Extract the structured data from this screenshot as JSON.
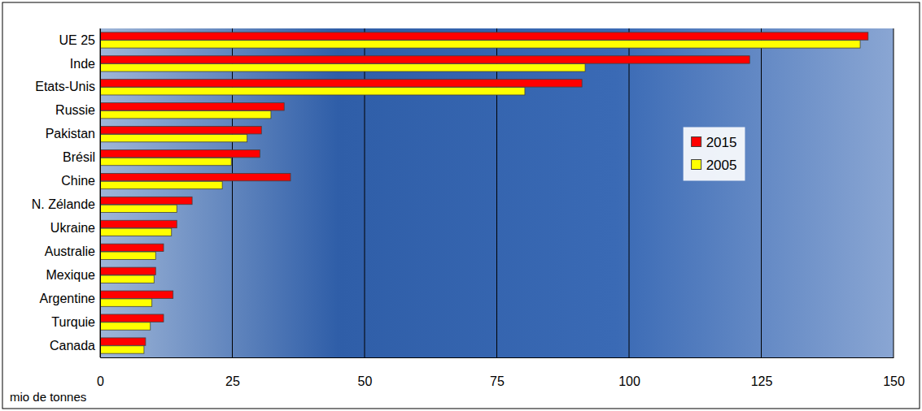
{
  "chart_data": {
    "type": "bar",
    "orientation": "horizontal",
    "categories": [
      "UE 25",
      "Inde",
      "Etats-Unis",
      "Russie",
      "Pakistan",
      "Brésil",
      "Chine",
      "N. Zélande",
      "Ukraine",
      "Australie",
      "Mexique",
      "Argentine",
      "Turquie",
      "Canada"
    ],
    "series": [
      {
        "name": "2015",
        "color": "#ff0000",
        "values": [
          145.2,
          122.8,
          91.1,
          34.8,
          30.5,
          30.2,
          36.0,
          17.4,
          14.5,
          12.0,
          10.5,
          13.8,
          12.0,
          8.6
        ]
      },
      {
        "name": "2005",
        "color": "#ffff00",
        "values": [
          143.7,
          91.7,
          80.3,
          32.3,
          27.8,
          24.8,
          23.1,
          14.5,
          13.5,
          10.5,
          10.2,
          9.8,
          9.5,
          8.3
        ]
      }
    ],
    "xlabel": "mio de tonnes",
    "xlim": [
      0,
      150
    ],
    "xticks": [
      0,
      25,
      50,
      75,
      100,
      125,
      150
    ],
    "grid": true,
    "legend": "right"
  }
}
